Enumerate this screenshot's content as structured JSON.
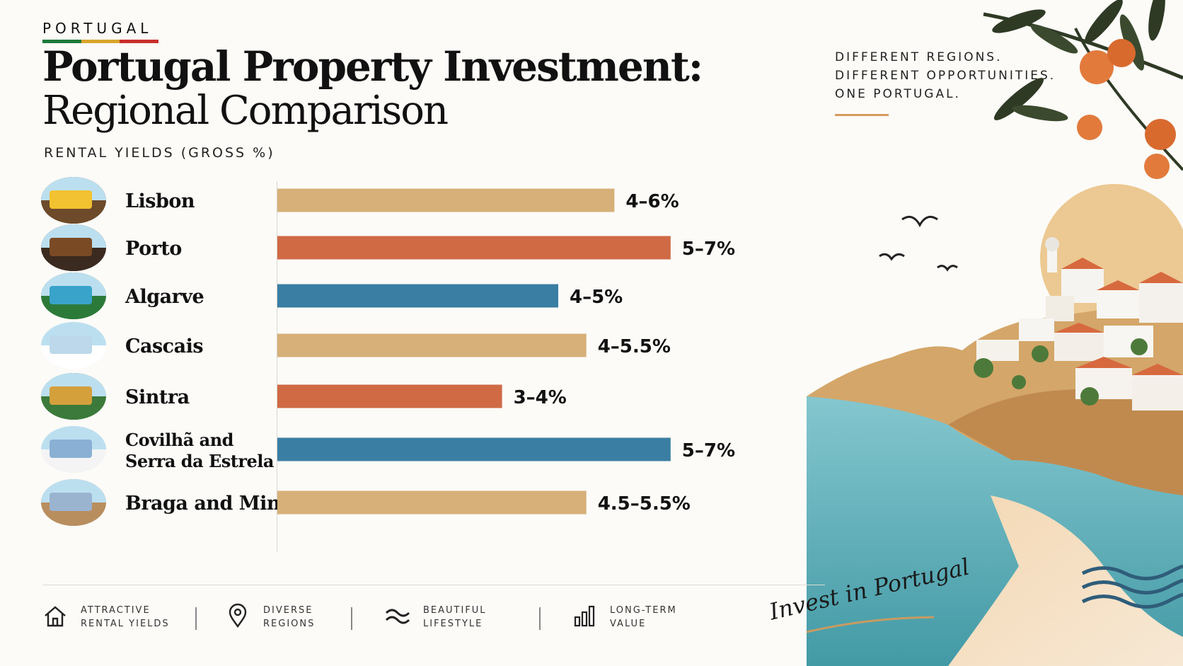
{
  "kicker": "PORTUGAL",
  "flag_colors": [
    "#1f7a3a",
    "#d9a52c",
    "#c9302c"
  ],
  "title_line1": "Portugal Property Investment:",
  "title_line2": "Regional Comparison",
  "tagline": [
    "DIFFERENT REGIONS.",
    "DIFFERENT OPPORTUNITIES.",
    "ONE PORTUGAL."
  ],
  "signature": "Invest in Portugal",
  "chart_data": {
    "type": "bar",
    "orientation": "horizontal",
    "title": "RENTAL YIELDS (GROSS %)",
    "categories": [
      "Lisbon",
      "Porto",
      "Algarve",
      "Cascais",
      "Sintra",
      "Covilhã and Serra da Estrela",
      "Braga and Minho"
    ],
    "category_lines": [
      [
        "Lisbon"
      ],
      [
        "Porto"
      ],
      [
        "Algarve"
      ],
      [
        "Cascais"
      ],
      [
        "Sintra"
      ],
      [
        "Covilhã and",
        "Serra da Estrela"
      ],
      [
        "Braga and Minho"
      ]
    ],
    "range_labels": [
      "4–6%",
      "5–7%",
      "4–5%",
      "4–5.5%",
      "3–4%",
      "5–7%",
      "4.5–5.5%"
    ],
    "values": [
      6,
      7,
      5,
      5.5,
      4,
      7,
      5.5
    ],
    "bar_colors": [
      "#d6b078",
      "#cf6a45",
      "#3a7ea3",
      "#d6b078",
      "#cf6a45",
      "#3a7ea3",
      "#d6b078"
    ],
    "xlim": [
      0,
      8
    ],
    "grid": false,
    "legend": "none"
  },
  "features": [
    {
      "icon": "house-icon",
      "lines": [
        "ATTRACTIVE",
        "RENTAL YIELDS"
      ]
    },
    {
      "icon": "map-pin-icon",
      "lines": [
        "DIVERSE",
        "REGIONS"
      ]
    },
    {
      "icon": "waves-icon",
      "lines": [
        "BEAUTIFUL",
        "LIFESTYLE"
      ]
    },
    {
      "icon": "bar-chart-icon",
      "lines": [
        "LONG-TERM",
        "VALUE"
      ]
    }
  ],
  "thumbnail_icons": [
    "tram-icon",
    "wine-barrel-icon",
    "palm-beach-icon",
    "marina-icon",
    "castle-icon",
    "mountain-icon",
    "cathedral-icon"
  ]
}
